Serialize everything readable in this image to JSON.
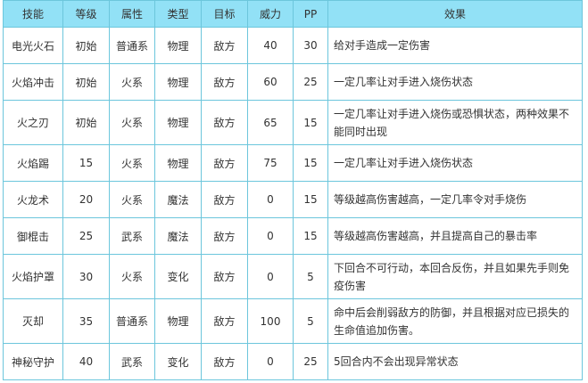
{
  "headers": [
    "技能",
    "等级",
    "属性",
    "类型",
    "目标",
    "威力",
    "PP",
    "效果"
  ],
  "rows": [
    [
      "电光火石",
      "初始",
      "普通系",
      "物理",
      "敌方",
      "40",
      "30",
      "给对手造成一定伤害"
    ],
    [
      "火焰冲击",
      "初始",
      "火系",
      "物理",
      "敌方",
      "60",
      "25",
      "一定几率让对手进入烧伤状态"
    ],
    [
      "火之刃",
      "初始",
      "火系",
      "物理",
      "敌方",
      "65",
      "15",
      "一定几率让对手进入烧伤或恐惧状态，两种效果不能同时出现"
    ],
    [
      "火焰踢",
      "15",
      "火系",
      "物理",
      "敌方",
      "75",
      "15",
      "一定几率让对手进入烧伤状态"
    ],
    [
      "火龙术",
      "20",
      "火系",
      "魔法",
      "敌方",
      "0",
      "15",
      "等级越高伤害越高，一定几率令对手烧伤"
    ],
    [
      "御棍击",
      "25",
      "武系",
      "魔法",
      "敌方",
      "0",
      "15",
      "等级越高伤害越高，并且提高自己的暴击率"
    ],
    [
      "火焰护罩",
      "30",
      "火系",
      "变化",
      "敌方",
      "0",
      "5",
      "下回合不可行动，本回合反伤，并且如果先手则免疫伤害"
    ],
    [
      "灭却",
      "35",
      "普通系",
      "物理",
      "敌方",
      "100",
      "5",
      "命中后会削弱敌方的防御，并且根据对应已损失的生命值追加伤害。"
    ],
    [
      "神秘守护",
      "40",
      "武系",
      "变化",
      "敌方",
      "0",
      "25",
      "5回合内不会出现异常状态"
    ]
  ],
  "colors": {
    "header_bg": "#92e1f6",
    "border": "#6cc6dc"
  }
}
